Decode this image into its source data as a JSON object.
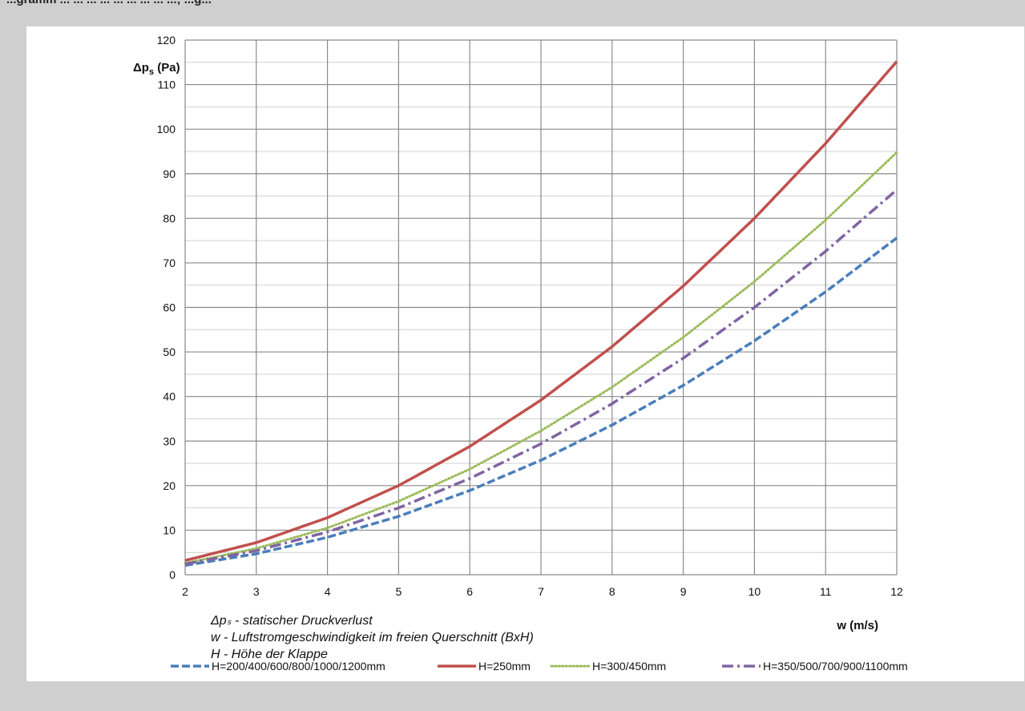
{
  "page": {
    "top_text": "...gramm ... ... ... ... ... ... ... ... ...; ...g..."
  },
  "chart_data": {
    "type": "line",
    "x_axis": {
      "label": "w (m/s)",
      "range": [
        2,
        12
      ],
      "ticks": [
        2,
        3,
        4,
        5,
        6,
        7,
        8,
        9,
        10,
        11,
        12
      ]
    },
    "y_axis": {
      "label": "Δps (Pa)",
      "range": [
        0,
        120
      ],
      "ticks": [
        0,
        10,
        20,
        30,
        40,
        50,
        60,
        70,
        80,
        90,
        100,
        110,
        120
      ],
      "minor_step": 5
    },
    "grid": true,
    "legend_position": "bottom",
    "x": [
      2,
      3,
      4,
      5,
      6,
      7,
      8,
      9,
      10,
      11,
      12
    ],
    "series": [
      {
        "name": "H=200/400/600/800/1000/1200mm",
        "color": "#4a7ebb",
        "style": "dashed",
        "values": [
          2.1,
          4.7,
          8.4,
          13.1,
          18.9,
          25.7,
          33.6,
          42.5,
          52.5,
          63.5,
          75.6
        ]
      },
      {
        "name": "H=250mm",
        "color": "#c0504d",
        "style": "solid",
        "values": [
          3.2,
          7.2,
          12.8,
          20.0,
          28.8,
          39.2,
          51.2,
          64.8,
          80.0,
          96.8,
          115.2
        ]
      },
      {
        "name": "H=300/450mm",
        "color": "#9bbb59",
        "style": "dotted",
        "values": [
          2.6,
          5.9,
          10.5,
          16.5,
          23.7,
          32.3,
          42.1,
          53.3,
          65.8,
          79.6,
          94.8
        ]
      },
      {
        "name": "H=350/500/700/900/1100mm",
        "color": "#8064a2",
        "style": "dashdot",
        "values": [
          2.4,
          5.4,
          9.6,
          15.0,
          21.6,
          29.4,
          38.4,
          48.6,
          60.0,
          72.6,
          86.4
        ]
      }
    ],
    "annotations": [
      "Δpₛ - statischer Druckverlust",
      "w - Luftstromgeschwindigkeit im freien Querschnitt (BxH)",
      "H - Höhe der Klappe"
    ]
  }
}
